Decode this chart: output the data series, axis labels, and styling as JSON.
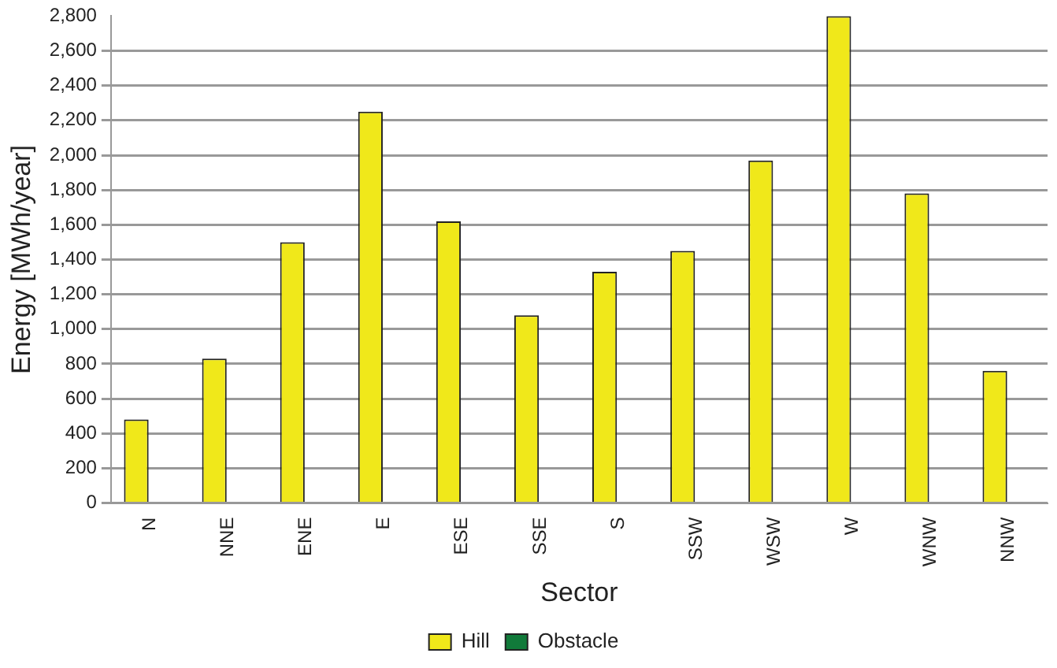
{
  "chart_data": {
    "type": "bar",
    "xlabel": "Sector",
    "ylabel": "Energy [MWh/year]",
    "categories": [
      "N",
      "NNE",
      "ENE",
      "E",
      "ESE",
      "SSE",
      "S",
      "SSW",
      "WSW",
      "W",
      "WNW",
      "NNW"
    ],
    "series": [
      {
        "name": "Hill",
        "color": "#f0e81a",
        "values": [
          480,
          830,
          1500,
          2250,
          1620,
          1080,
          1330,
          1450,
          1970,
          2800,
          1780,
          760
        ]
      },
      {
        "name": "Obstacle",
        "color": "#117a3a",
        "values": [
          0,
          0,
          0,
          0,
          0,
          0,
          0,
          0,
          0,
          0,
          0,
          0
        ]
      }
    ],
    "ylim": [
      0,
      2800
    ],
    "yticks": [
      0,
      200,
      400,
      600,
      800,
      {
        "value": 1000,
        "label": "1,000"
      },
      {
        "value": 1200,
        "label": "1,200"
      },
      {
        "value": 1400,
        "label": "1,400"
      },
      {
        "value": 1600,
        "label": "1,600"
      },
      {
        "value": 1800,
        "label": "1,800"
      },
      {
        "value": 2000,
        "label": "2,000"
      },
      {
        "value": 2200,
        "label": "2,200"
      },
      {
        "value": 2400,
        "label": "2,400"
      },
      {
        "value": 2600,
        "label": "2,600"
      },
      {
        "value": 2800,
        "label": "2,800"
      }
    ],
    "grid": "y",
    "legend": "bottom"
  }
}
